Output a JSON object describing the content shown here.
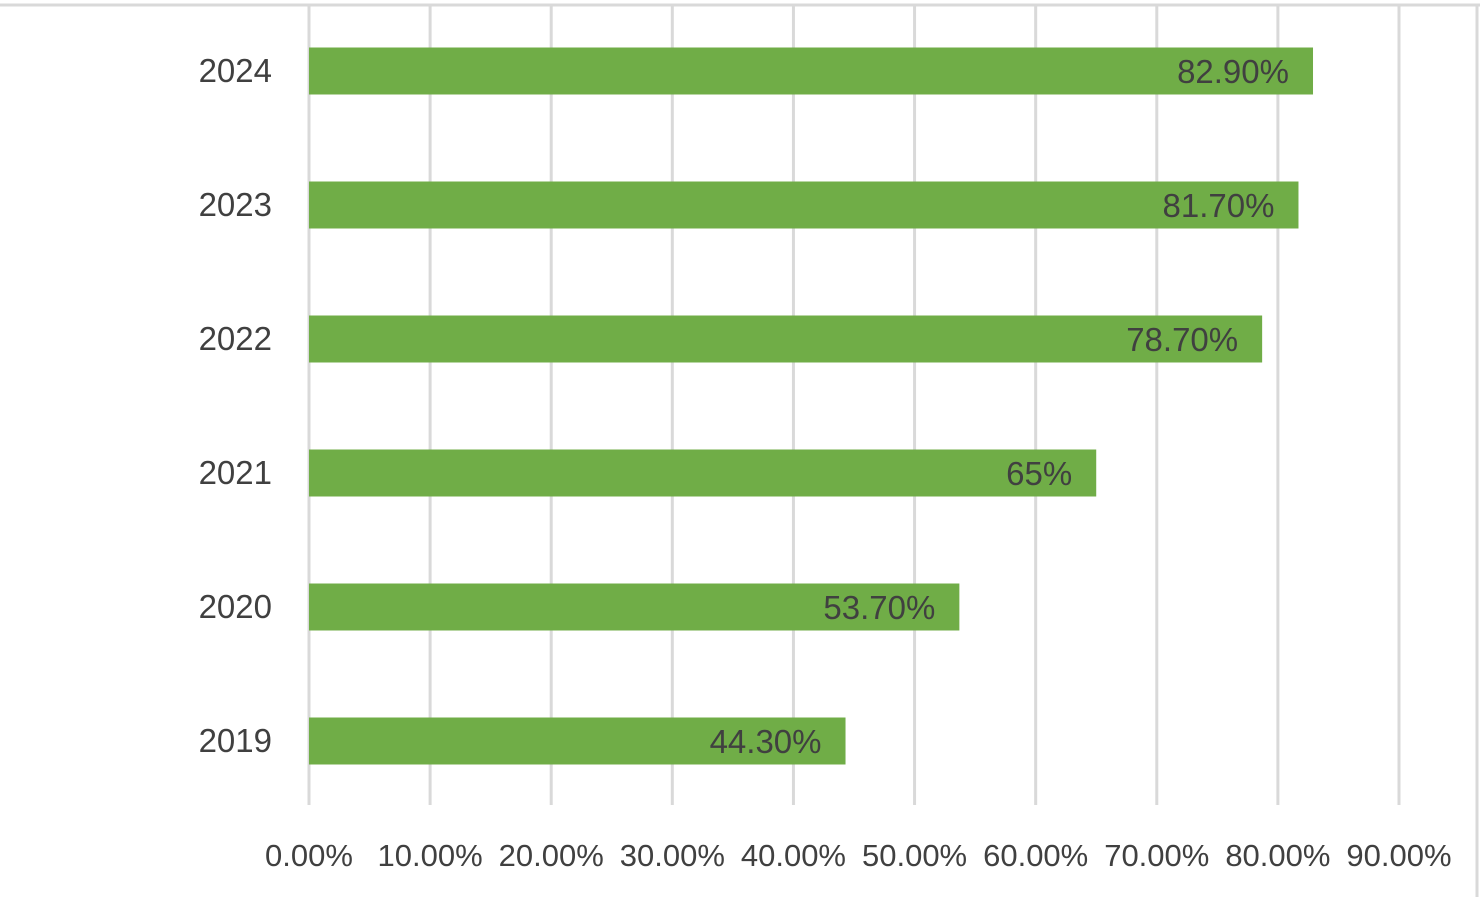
{
  "chart_data": {
    "type": "bar",
    "orientation": "horizontal",
    "categories": [
      "2024",
      "2023",
      "2022",
      "2021",
      "2020",
      "2019"
    ],
    "values": [
      82.9,
      81.7,
      78.7,
      65,
      53.7,
      44.3
    ],
    "data_labels": [
      "82.90%",
      "81.70%",
      "78.70%",
      "65%",
      "53.70%",
      "44.30%"
    ],
    "xlim": [
      0,
      90
    ],
    "x_ticks": [
      0,
      10,
      20,
      30,
      40,
      50,
      60,
      70,
      80,
      90
    ],
    "x_tick_labels": [
      "0.00%",
      "10.00%",
      "20.00%",
      "30.00%",
      "40.00%",
      "50.00%",
      "60.00%",
      "70.00%",
      "80.00%",
      "90.00%"
    ],
    "grid": "vertical",
    "legend": "none",
    "colors": {
      "bar": "#70AD47",
      "gridline": "#D9D9D9",
      "text": "#404040",
      "border": "#D9D9D9"
    }
  }
}
